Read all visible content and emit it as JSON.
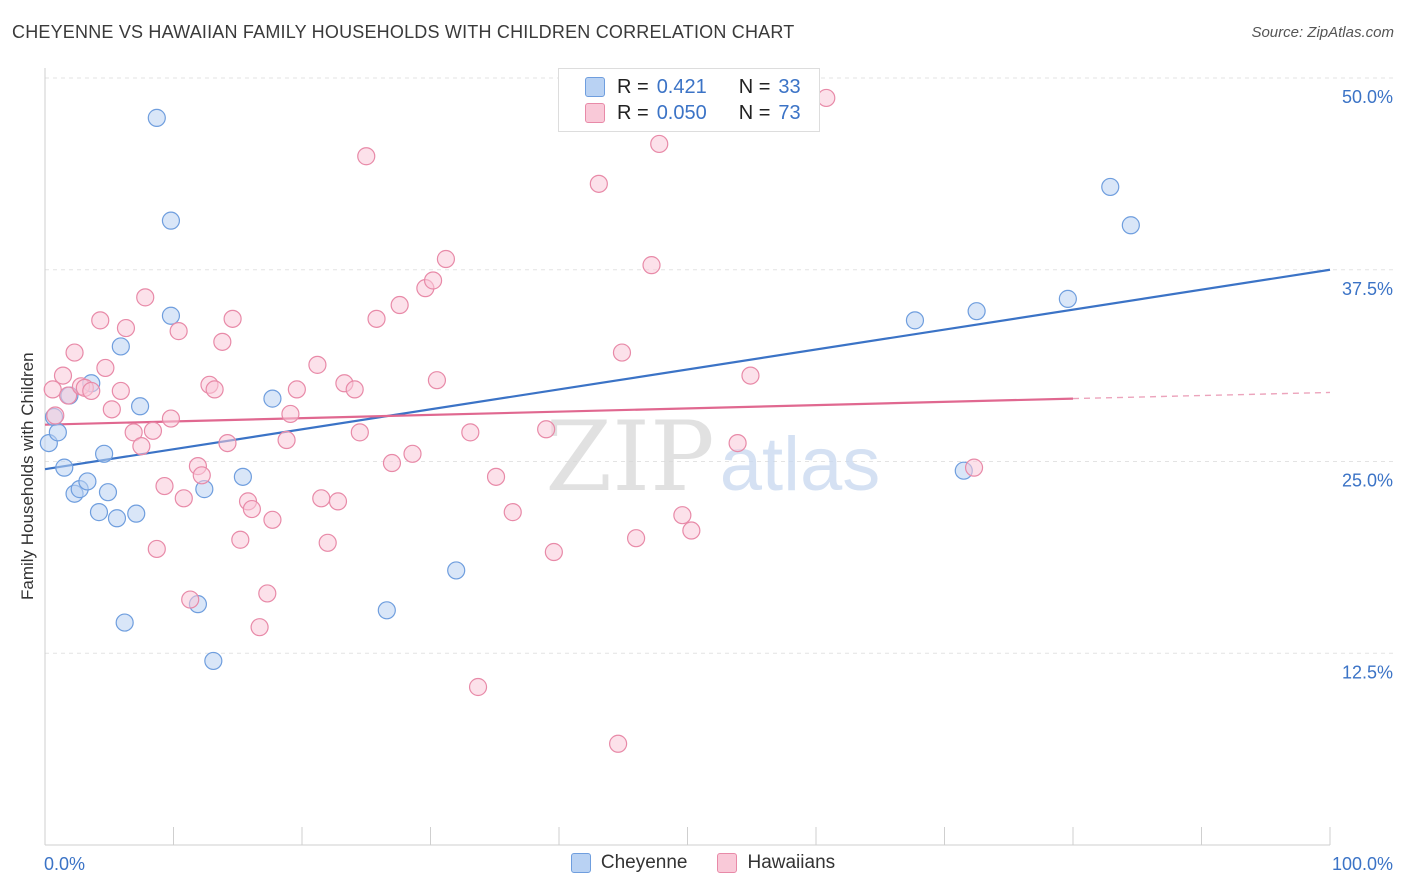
{
  "header": {
    "title": "CHEYENNE VS HAWAIIAN FAMILY HOUSEHOLDS WITH CHILDREN CORRELATION CHART",
    "source": "Source: ZipAtlas.com"
  },
  "watermark": {
    "zip": "ZIP",
    "atlas": "atlas"
  },
  "legend": {
    "rows": [
      {
        "r_label": "R =",
        "r_value": "0.421",
        "n_label": "N =",
        "n_value": "33",
        "fill": "#b9d2f3",
        "stroke": "#6f9ede"
      },
      {
        "r_label": "R =",
        "r_value": "0.050",
        "n_label": "N =",
        "n_value": "73",
        "fill": "#f9c9d8",
        "stroke": "#e88aa8"
      }
    ]
  },
  "chart_data": {
    "type": "scatter",
    "title": "CHEYENNE VS HAWAIIAN FAMILY HOUSEHOLDS WITH CHILDREN CORRELATION CHART",
    "xlabel": "",
    "ylabel": "Family Households with Children",
    "xlim": [
      0,
      100
    ],
    "ylim": [
      0,
      50
    ],
    "x_tick_labels": [
      "0.0%",
      "100.0%"
    ],
    "y_ticks": [
      12.5,
      25.0,
      37.5,
      50.0
    ],
    "y_tick_labels": [
      "12.5%",
      "25.0%",
      "37.5%",
      "50.0%"
    ],
    "grid": true,
    "legend_position": "top-center",
    "series": [
      {
        "name": "Cheyenne",
        "color": "#3b73c6",
        "fill": "#b9d2f3",
        "stroke": "#6f9ede",
        "trend": {
          "x": [
            0,
            100
          ],
          "y": [
            24.5,
            37.5
          ]
        },
        "points": [
          [
            0.3,
            26.2
          ],
          [
            0.7,
            27.9
          ],
          [
            1.0,
            26.9
          ],
          [
            1.5,
            24.6
          ],
          [
            1.9,
            29.3
          ],
          [
            2.3,
            22.9
          ],
          [
            2.7,
            23.2
          ],
          [
            3.3,
            23.7
          ],
          [
            3.6,
            30.1
          ],
          [
            4.2,
            21.7
          ],
          [
            4.6,
            25.5
          ],
          [
            4.9,
            23.0
          ],
          [
            5.6,
            21.3
          ],
          [
            5.9,
            32.5
          ],
          [
            6.2,
            14.5
          ],
          [
            7.1,
            21.6
          ],
          [
            7.4,
            28.6
          ],
          [
            8.7,
            47.4
          ],
          [
            9.8,
            40.7
          ],
          [
            9.8,
            34.5
          ],
          [
            11.9,
            15.7
          ],
          [
            12.4,
            23.2
          ],
          [
            13.1,
            12.0
          ],
          [
            15.4,
            24.0
          ],
          [
            17.7,
            29.1
          ],
          [
            26.6,
            15.3
          ],
          [
            32.0,
            17.9
          ],
          [
            67.7,
            34.2
          ],
          [
            71.5,
            24.4
          ],
          [
            72.5,
            34.8
          ],
          [
            79.6,
            35.6
          ],
          [
            82.9,
            42.9
          ],
          [
            84.5,
            40.4
          ]
        ]
      },
      {
        "name": "Hawaiians",
        "color": "#e06890",
        "fill": "#f9c9d8",
        "stroke": "#e88aa8",
        "trend": {
          "x": [
            0,
            80
          ],
          "y": [
            27.4,
            29.1
          ]
        },
        "trend_dashed": {
          "x": [
            80,
            100
          ],
          "y": [
            29.1,
            29.5
          ]
        },
        "points": [
          [
            0.6,
            29.7
          ],
          [
            0.8,
            28.0
          ],
          [
            1.4,
            30.6
          ],
          [
            1.8,
            29.3
          ],
          [
            2.3,
            32.1
          ],
          [
            2.8,
            29.9
          ],
          [
            3.1,
            29.8
          ],
          [
            3.6,
            29.6
          ],
          [
            4.3,
            34.2
          ],
          [
            4.7,
            31.1
          ],
          [
            5.2,
            28.4
          ],
          [
            5.9,
            29.6
          ],
          [
            6.3,
            33.7
          ],
          [
            6.9,
            26.9
          ],
          [
            7.5,
            26.0
          ],
          [
            7.8,
            35.7
          ],
          [
            8.4,
            27.0
          ],
          [
            8.7,
            19.3
          ],
          [
            9.3,
            23.4
          ],
          [
            9.8,
            27.8
          ],
          [
            10.4,
            33.5
          ],
          [
            10.8,
            22.6
          ],
          [
            11.3,
            16.0
          ],
          [
            11.9,
            24.7
          ],
          [
            12.2,
            24.1
          ],
          [
            12.8,
            30.0
          ],
          [
            13.2,
            29.7
          ],
          [
            13.8,
            32.8
          ],
          [
            14.2,
            26.2
          ],
          [
            14.6,
            34.3
          ],
          [
            15.2,
            19.9
          ],
          [
            15.8,
            22.4
          ],
          [
            16.1,
            21.9
          ],
          [
            16.7,
            14.2
          ],
          [
            17.3,
            16.4
          ],
          [
            17.7,
            21.2
          ],
          [
            18.8,
            26.4
          ],
          [
            19.1,
            28.1
          ],
          [
            19.6,
            29.7
          ],
          [
            21.2,
            31.3
          ],
          [
            21.5,
            22.6
          ],
          [
            22.0,
            19.7
          ],
          [
            22.8,
            22.4
          ],
          [
            23.3,
            30.1
          ],
          [
            24.1,
            29.7
          ],
          [
            24.5,
            26.9
          ],
          [
            25.0,
            44.9
          ],
          [
            25.8,
            34.3
          ],
          [
            27.0,
            24.9
          ],
          [
            27.6,
            35.2
          ],
          [
            28.6,
            25.5
          ],
          [
            29.6,
            36.3
          ],
          [
            30.2,
            36.8
          ],
          [
            30.5,
            30.3
          ],
          [
            31.2,
            38.2
          ],
          [
            33.1,
            26.9
          ],
          [
            33.7,
            10.3
          ],
          [
            35.1,
            24.0
          ],
          [
            36.4,
            21.7
          ],
          [
            39.0,
            27.1
          ],
          [
            39.6,
            19.1
          ],
          [
            43.1,
            43.1
          ],
          [
            44.6,
            6.6
          ],
          [
            44.9,
            32.1
          ],
          [
            46.0,
            20.0
          ],
          [
            47.2,
            37.8
          ],
          [
            47.8,
            45.7
          ],
          [
            49.6,
            21.5
          ],
          [
            50.3,
            20.5
          ],
          [
            53.9,
            26.2
          ],
          [
            54.9,
            30.6
          ],
          [
            60.8,
            48.7
          ],
          [
            72.3,
            24.6
          ]
        ]
      }
    ]
  }
}
